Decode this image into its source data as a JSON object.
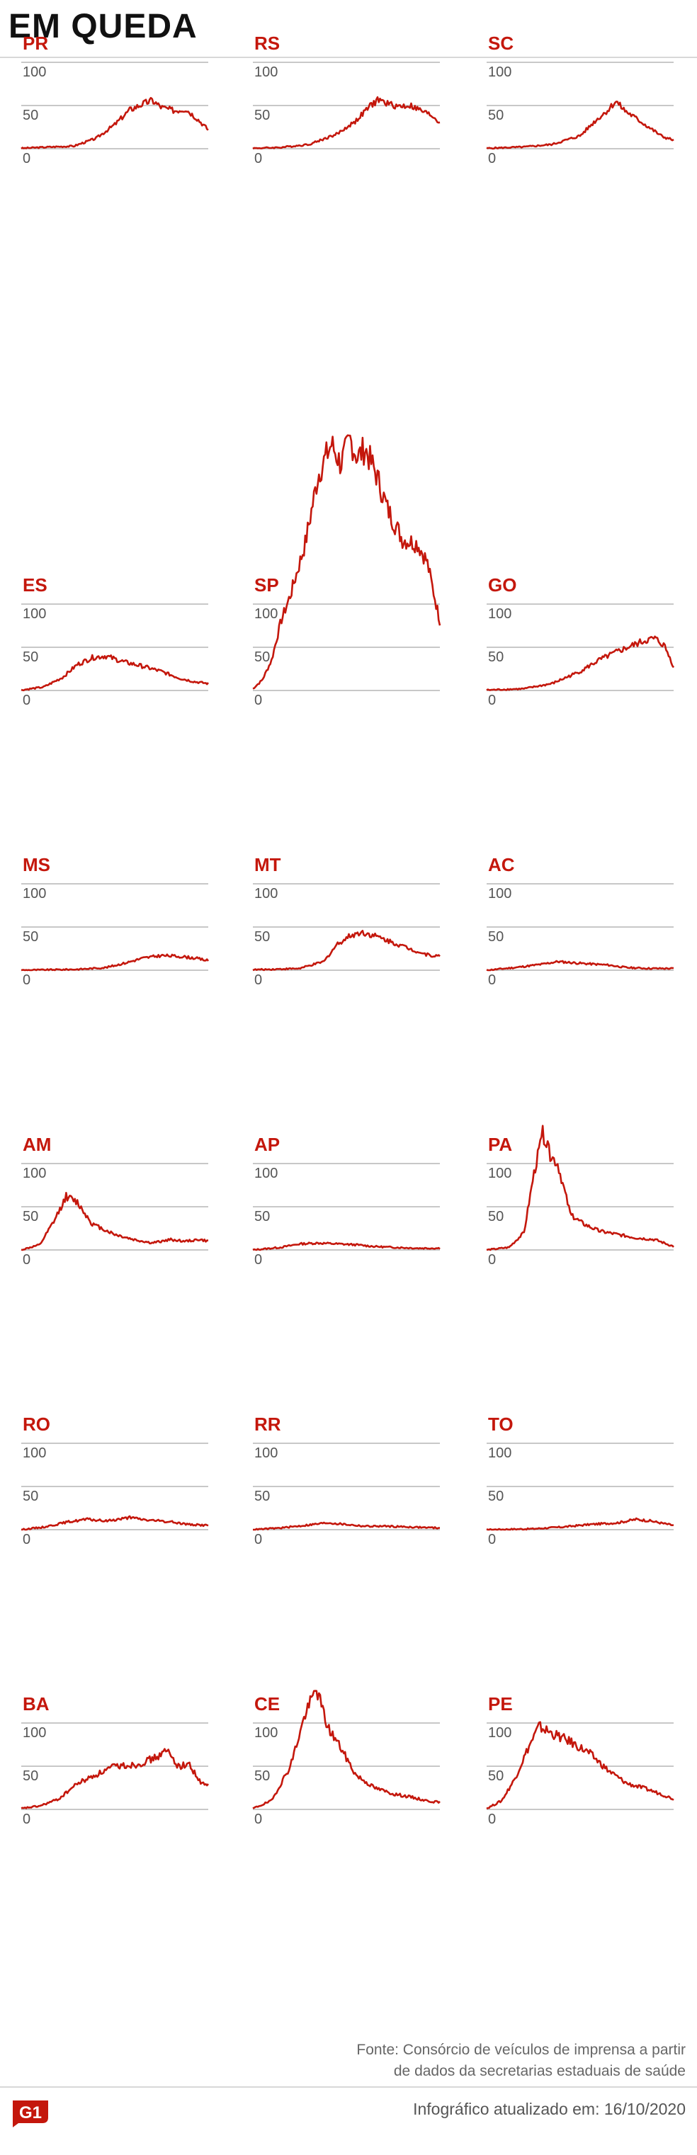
{
  "title": "EM QUEDA",
  "source_text_line1": "Fonte: Consórcio de veículos de imprensa a partir",
  "source_text_line2": "de dados da secretarias estaduais de saúde",
  "logo_text": "G1",
  "updated_text": "Infográfico atualizado em: 16/10/2020",
  "colors": {
    "line": "#c4170c",
    "label": "#c4170c",
    "grid": "#b5b5b5",
    "tick": "#555555"
  },
  "chart_data": [
    {
      "type": "line",
      "state": "PR",
      "ylim": [
        0,
        100
      ],
      "yticks": [
        0,
        50,
        100
      ],
      "grid": true,
      "anchors": [
        [
          0,
          0.5
        ],
        [
          0.15,
          2
        ],
        [
          0.28,
          3
        ],
        [
          0.4,
          12
        ],
        [
          0.5,
          28
        ],
        [
          0.58,
          45
        ],
        [
          0.65,
          52
        ],
        [
          0.7,
          56
        ],
        [
          0.75,
          48
        ],
        [
          0.82,
          44
        ],
        [
          0.88,
          46
        ],
        [
          0.94,
          35
        ],
        [
          1.0,
          22
        ]
      ]
    },
    {
      "type": "line",
      "state": "RS",
      "ylim": [
        0,
        100
      ],
      "yticks": [
        0,
        50,
        100
      ],
      "grid": true,
      "anchors": [
        [
          0,
          0.5
        ],
        [
          0.15,
          1.5
        ],
        [
          0.3,
          5
        ],
        [
          0.45,
          17
        ],
        [
          0.55,
          32
        ],
        [
          0.62,
          48
        ],
        [
          0.67,
          57
        ],
        [
          0.72,
          52
        ],
        [
          0.78,
          49
        ],
        [
          0.84,
          50
        ],
        [
          0.9,
          44
        ],
        [
          0.96,
          38
        ],
        [
          1.0,
          30
        ]
      ]
    },
    {
      "type": "line",
      "state": "SC",
      "ylim": [
        0,
        100
      ],
      "yticks": [
        0,
        50,
        100
      ],
      "grid": true,
      "anchors": [
        [
          0,
          0.5
        ],
        [
          0.2,
          2
        ],
        [
          0.35,
          5
        ],
        [
          0.5,
          15
        ],
        [
          0.58,
          32
        ],
        [
          0.65,
          45
        ],
        [
          0.69,
          55
        ],
        [
          0.74,
          44
        ],
        [
          0.82,
          32
        ],
        [
          0.88,
          23
        ],
        [
          0.94,
          14
        ],
        [
          1.0,
          10
        ]
      ]
    },
    {
      "type": "line",
      "state": "ES",
      "ylim": [
        0,
        100
      ],
      "yticks": [
        0,
        50,
        100
      ],
      "grid": true,
      "anchors": [
        [
          0,
          0.5
        ],
        [
          0.12,
          4
        ],
        [
          0.22,
          15
        ],
        [
          0.3,
          30
        ],
        [
          0.38,
          38
        ],
        [
          0.45,
          40
        ],
        [
          0.55,
          33
        ],
        [
          0.65,
          28
        ],
        [
          0.75,
          22
        ],
        [
          0.85,
          14
        ],
        [
          0.93,
          10
        ],
        [
          1.0,
          8
        ]
      ]
    },
    {
      "type": "line",
      "state": "SP",
      "ylim": [
        0,
        100
      ],
      "yticks": [
        0,
        50,
        100
      ],
      "grid": true,
      "anchors": [
        [
          0,
          2
        ],
        [
          0.05,
          12
        ],
        [
          0.1,
          35
        ],
        [
          0.15,
          80
        ],
        [
          0.2,
          110
        ],
        [
          0.28,
          170
        ],
        [
          0.35,
          250
        ],
        [
          0.42,
          285
        ],
        [
          0.47,
          262
        ],
        [
          0.52,
          290
        ],
        [
          0.56,
          270
        ],
        [
          0.6,
          280
        ],
        [
          0.66,
          250
        ],
        [
          0.72,
          210
        ],
        [
          0.8,
          175
        ],
        [
          0.88,
          170
        ],
        [
          0.93,
          150
        ],
        [
          0.96,
          120
        ],
        [
          0.98,
          100
        ],
        [
          1.0,
          80
        ]
      ]
    },
    {
      "type": "line",
      "state": "GO",
      "ylim": [
        0,
        100
      ],
      "yticks": [
        0,
        50,
        100
      ],
      "grid": true,
      "anchors": [
        [
          0,
          0.5
        ],
        [
          0.2,
          2
        ],
        [
          0.35,
          8
        ],
        [
          0.5,
          22
        ],
        [
          0.6,
          35
        ],
        [
          0.7,
          45
        ],
        [
          0.78,
          52
        ],
        [
          0.85,
          58
        ],
        [
          0.9,
          60
        ],
        [
          0.95,
          52
        ],
        [
          1.0,
          28
        ]
      ]
    },
    {
      "type": "line",
      "state": "MS",
      "ylim": [
        0,
        100
      ],
      "yticks": [
        0,
        50,
        100
      ],
      "grid": true,
      "anchors": [
        [
          0,
          0
        ],
        [
          0.3,
          1
        ],
        [
          0.45,
          3
        ],
        [
          0.55,
          8
        ],
        [
          0.65,
          14
        ],
        [
          0.75,
          17
        ],
        [
          0.85,
          16
        ],
        [
          0.93,
          14
        ],
        [
          1.0,
          11
        ]
      ]
    },
    {
      "type": "line",
      "state": "MT",
      "ylim": [
        0,
        100
      ],
      "yticks": [
        0,
        50,
        100
      ],
      "grid": true,
      "anchors": [
        [
          0,
          0.5
        ],
        [
          0.25,
          2
        ],
        [
          0.38,
          10
        ],
        [
          0.45,
          30
        ],
        [
          0.52,
          40
        ],
        [
          0.58,
          44
        ],
        [
          0.65,
          40
        ],
        [
          0.75,
          32
        ],
        [
          0.85,
          24
        ],
        [
          0.93,
          18
        ],
        [
          1.0,
          16
        ]
      ]
    },
    {
      "type": "line",
      "state": "AC",
      "ylim": [
        0,
        100
      ],
      "yticks": [
        0,
        50,
        100
      ],
      "grid": true,
      "anchors": [
        [
          0,
          0
        ],
        [
          0.15,
          3
        ],
        [
          0.3,
          7
        ],
        [
          0.38,
          10
        ],
        [
          0.5,
          8
        ],
        [
          0.65,
          6
        ],
        [
          0.75,
          3
        ],
        [
          0.88,
          2
        ],
        [
          1.0,
          2
        ]
      ]
    },
    {
      "type": "line",
      "state": "AM",
      "ylim": [
        0,
        100
      ],
      "yticks": [
        0,
        50,
        100
      ],
      "grid": true,
      "anchors": [
        [
          0,
          0
        ],
        [
          0.1,
          6
        ],
        [
          0.18,
          35
        ],
        [
          0.24,
          62
        ],
        [
          0.3,
          55
        ],
        [
          0.38,
          30
        ],
        [
          0.5,
          18
        ],
        [
          0.6,
          12
        ],
        [
          0.7,
          8
        ],
        [
          0.8,
          12
        ],
        [
          0.88,
          10
        ],
        [
          0.95,
          12
        ],
        [
          1.0,
          10
        ]
      ]
    },
    {
      "type": "line",
      "state": "AP",
      "ylim": [
        0,
        100
      ],
      "yticks": [
        0,
        50,
        100
      ],
      "grid": true,
      "anchors": [
        [
          0,
          0
        ],
        [
          0.15,
          3
        ],
        [
          0.25,
          7
        ],
        [
          0.35,
          8
        ],
        [
          0.45,
          7
        ],
        [
          0.55,
          6
        ],
        [
          0.65,
          4
        ],
        [
          0.75,
          3
        ],
        [
          0.88,
          2
        ],
        [
          1.0,
          2
        ]
      ]
    },
    {
      "type": "line",
      "state": "PA",
      "ylim": [
        0,
        100
      ],
      "yticks": [
        0,
        50,
        100
      ],
      "grid": true,
      "anchors": [
        [
          0,
          0
        ],
        [
          0.12,
          3
        ],
        [
          0.2,
          20
        ],
        [
          0.25,
          85
        ],
        [
          0.3,
          135
        ],
        [
          0.34,
          110
        ],
        [
          0.38,
          100
        ],
        [
          0.45,
          40
        ],
        [
          0.52,
          30
        ],
        [
          0.6,
          22
        ],
        [
          0.7,
          18
        ],
        [
          0.8,
          14
        ],
        [
          0.9,
          12
        ],
        [
          1.0,
          4
        ]
      ]
    },
    {
      "type": "line",
      "state": "RO",
      "ylim": [
        0,
        100
      ],
      "yticks": [
        0,
        50,
        100
      ],
      "grid": true,
      "anchors": [
        [
          0,
          0
        ],
        [
          0.12,
          3
        ],
        [
          0.25,
          9
        ],
        [
          0.35,
          12
        ],
        [
          0.45,
          10
        ],
        [
          0.58,
          14
        ],
        [
          0.68,
          11
        ],
        [
          0.8,
          9
        ],
        [
          0.9,
          6
        ],
        [
          1.0,
          5
        ]
      ]
    },
    {
      "type": "line",
      "state": "RR",
      "ylim": [
        0,
        100
      ],
      "yticks": [
        0,
        50,
        100
      ],
      "grid": true,
      "anchors": [
        [
          0,
          0
        ],
        [
          0.15,
          2
        ],
        [
          0.28,
          5
        ],
        [
          0.4,
          8
        ],
        [
          0.5,
          6
        ],
        [
          0.6,
          4
        ],
        [
          0.72,
          4
        ],
        [
          0.85,
          3
        ],
        [
          1.0,
          2
        ]
      ]
    },
    {
      "type": "line",
      "state": "TO",
      "ylim": [
        0,
        100
      ],
      "yticks": [
        0,
        50,
        100
      ],
      "grid": true,
      "anchors": [
        [
          0,
          0
        ],
        [
          0.25,
          1
        ],
        [
          0.4,
          3
        ],
        [
          0.55,
          6
        ],
        [
          0.7,
          8
        ],
        [
          0.8,
          12
        ],
        [
          0.88,
          10
        ],
        [
          0.95,
          7
        ],
        [
          1.0,
          5
        ]
      ]
    },
    {
      "type": "line",
      "state": "BA",
      "ylim": [
        0,
        100
      ],
      "yticks": [
        0,
        50,
        100
      ],
      "grid": true,
      "anchors": [
        [
          0,
          1
        ],
        [
          0.1,
          4
        ],
        [
          0.2,
          12
        ],
        [
          0.3,
          30
        ],
        [
          0.4,
          40
        ],
        [
          0.5,
          50
        ],
        [
          0.62,
          52
        ],
        [
          0.72,
          60
        ],
        [
          0.78,
          68
        ],
        [
          0.84,
          50
        ],
        [
          0.9,
          52
        ],
        [
          0.96,
          30
        ],
        [
          1.0,
          28
        ]
      ]
    },
    {
      "type": "line",
      "state": "CE",
      "ylim": [
        0,
        100
      ],
      "yticks": [
        0,
        50,
        100
      ],
      "grid": true,
      "anchors": [
        [
          0,
          1
        ],
        [
          0.1,
          10
        ],
        [
          0.2,
          50
        ],
        [
          0.28,
          110
        ],
        [
          0.34,
          140
        ],
        [
          0.4,
          95
        ],
        [
          0.46,
          75
        ],
        [
          0.55,
          40
        ],
        [
          0.65,
          25
        ],
        [
          0.75,
          18
        ],
        [
          0.85,
          14
        ],
        [
          0.93,
          10
        ],
        [
          1.0,
          8
        ]
      ]
    },
    {
      "type": "line",
      "state": "PE",
      "ylim": [
        0,
        100
      ],
      "yticks": [
        0,
        50,
        100
      ],
      "grid": true,
      "anchors": [
        [
          0,
          1
        ],
        [
          0.08,
          10
        ],
        [
          0.15,
          35
        ],
        [
          0.22,
          70
        ],
        [
          0.28,
          96
        ],
        [
          0.35,
          88
        ],
        [
          0.45,
          78
        ],
        [
          0.55,
          65
        ],
        [
          0.65,
          45
        ],
        [
          0.75,
          30
        ],
        [
          0.85,
          24
        ],
        [
          0.93,
          18
        ],
        [
          1.0,
          12
        ]
      ]
    }
  ]
}
